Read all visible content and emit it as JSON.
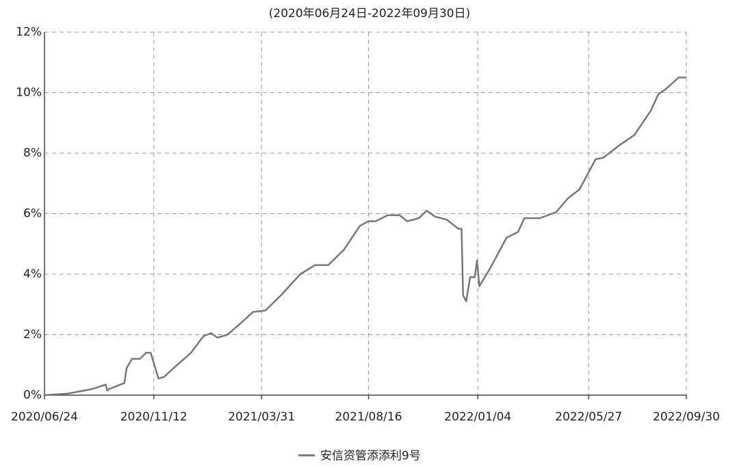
{
  "chart_data": {
    "type": "line",
    "title": "(2020年06月24日-2022年09月30日)",
    "x": [
      "2020/06/24",
      "2020/07/24",
      "2020/08/24",
      "2020/09/11",
      "2020/09/13",
      "2020/09/15",
      "2020/10/05",
      "2020/10/08",
      "2020/10/15",
      "2020/10/25",
      "2020/11/02",
      "2020/11/08",
      "2020/11/18",
      "2020/11/25",
      "2020/12/10",
      "2020/12/30",
      "2021/01/15",
      "2021/01/25",
      "2021/02/02",
      "2021/02/15",
      "2021/03/05",
      "2021/03/20",
      "2021/04/05",
      "2021/04/25",
      "2021/05/20",
      "2021/06/08",
      "2021/06/25",
      "2021/07/15",
      "2021/08/05",
      "2021/08/16",
      "2021/08/25",
      "2021/09/10",
      "2021/09/25",
      "2021/10/05",
      "2021/10/20",
      "2021/10/30",
      "2021/11/10",
      "2021/11/25",
      "2021/12/10",
      "2021/12/14",
      "2021/12/16",
      "2021/12/20",
      "2021/12/25",
      "2021/12/31",
      "2022/01/03",
      "2022/01/06",
      "2022/01/20",
      "2022/02/10",
      "2022/02/25",
      "2022/03/05",
      "2022/03/25",
      "2022/04/15",
      "2022/04/30",
      "2022/05/15",
      "2022/06/05",
      "2022/06/15",
      "2022/07/05",
      "2022/07/25",
      "2022/08/15",
      "2022/08/25",
      "2022/09/05",
      "2022/09/20",
      "2022/09/30"
    ],
    "series": [
      {
        "name": "安信资管添添利9号",
        "color": "#777777",
        "values": [
          0,
          0.05,
          0.2,
          0.35,
          0.15,
          0.2,
          0.4,
          0.9,
          1.2,
          1.2,
          1.4,
          1.4,
          0.55,
          0.6,
          0.95,
          1.4,
          1.95,
          2.05,
          1.9,
          2.0,
          2.4,
          2.75,
          2.8,
          3.3,
          4.0,
          4.3,
          4.3,
          4.8,
          5.6,
          5.75,
          5.75,
          5.95,
          5.95,
          5.75,
          5.85,
          6.1,
          5.9,
          5.8,
          5.5,
          5.5,
          3.3,
          3.1,
          3.9,
          3.9,
          4.45,
          3.6,
          4.2,
          5.2,
          5.4,
          5.85,
          5.85,
          6.05,
          6.5,
          6.8,
          7.8,
          7.85,
          8.25,
          8.6,
          9.4,
          9.95,
          10.15,
          10.5,
          10.5
        ]
      }
    ],
    "xlim": [
      "2020/06/24",
      "2022/09/30"
    ],
    "xticks": [
      "2020/06/24",
      "2020/11/12",
      "2021/03/31",
      "2021/08/16",
      "2022/01/04",
      "2022/05/27",
      "2022/09/30"
    ],
    "ylim": [
      0,
      12
    ],
    "yticks": [
      {
        "value": 0,
        "label": "0%"
      },
      {
        "value": 2,
        "label": "2%"
      },
      {
        "value": 4,
        "label": "4%"
      },
      {
        "value": 6,
        "label": "6%"
      },
      {
        "value": 8,
        "label": "8%"
      },
      {
        "value": 10,
        "label": "10%"
      },
      {
        "value": 12,
        "label": "12%"
      }
    ],
    "grid": true
  }
}
